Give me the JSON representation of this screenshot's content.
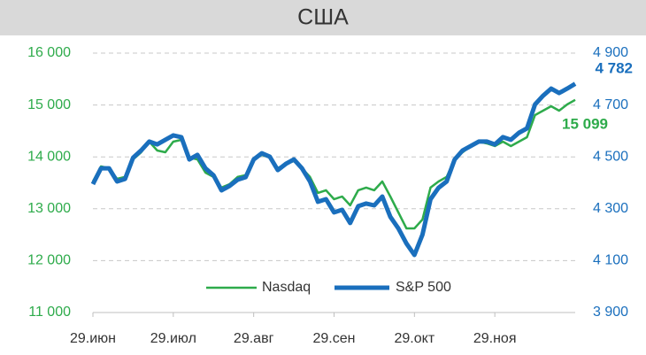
{
  "chart_data": {
    "type": "line",
    "title": "США",
    "categories": [
      "29.июн",
      null,
      null,
      null,
      null,
      null,
      null,
      null,
      null,
      null,
      "29.июл",
      null,
      null,
      null,
      null,
      null,
      null,
      null,
      null,
      null,
      "29.авг",
      null,
      null,
      null,
      null,
      null,
      null,
      null,
      null,
      null,
      "29.сен",
      null,
      null,
      null,
      null,
      null,
      null,
      null,
      null,
      null,
      "29.окт",
      null,
      null,
      null,
      null,
      null,
      null,
      null,
      null,
      null,
      "29.ноя",
      null,
      null,
      null,
      null,
      null,
      null,
      null,
      null,
      null,
      null
    ],
    "series": [
      {
        "name": "Nasdaq",
        "color": "#2eab4b",
        "axis": "y",
        "values": [
          13526,
          13816,
          13782,
          13577,
          13612,
          13953,
          14089,
          14294,
          14123,
          14089,
          14294,
          14328,
          13987,
          13953,
          13697,
          13612,
          13407,
          13475,
          13612,
          13646,
          13953,
          14038,
          13987,
          13782,
          13867,
          13919,
          13782,
          13612,
          13305,
          13356,
          13185,
          13236,
          13066,
          13356,
          13407,
          13356,
          13526,
          13236,
          12929,
          12622,
          12622,
          12793,
          13407,
          13526,
          13612,
          13953,
          14089,
          14209,
          14294,
          14260,
          14209,
          14294,
          14209,
          14294,
          14379,
          14806,
          14891,
          14976,
          14891,
          15011,
          15099
        ],
        "value_labels": [
          null,
          null,
          null,
          null,
          null,
          null,
          null,
          null,
          null,
          null,
          null,
          null,
          null,
          null,
          null,
          null,
          null,
          null,
          null,
          null,
          null,
          null,
          null,
          null,
          null,
          null,
          null,
          null,
          null,
          null,
          null,
          null,
          null,
          null,
          null,
          null,
          null,
          null,
          null,
          null,
          null,
          null,
          null,
          null,
          null,
          null,
          null,
          null,
          null,
          null,
          null,
          null,
          null,
          null,
          null,
          null,
          null,
          null,
          null,
          null,
          "15 099"
        ]
      },
      {
        "name": "S&P 500",
        "color": "#1a6fbd",
        "axis": "y2",
        "values": [
          4395,
          4456,
          4456,
          4405,
          4415,
          4497,
          4525,
          4559,
          4548,
          4566,
          4583,
          4576,
          4490,
          4508,
          4456,
          4429,
          4371,
          4388,
          4412,
          4422,
          4490,
          4514,
          4501,
          4449,
          4473,
          4490,
          4456,
          4405,
          4327,
          4337,
          4286,
          4296,
          4245,
          4310,
          4320,
          4313,
          4347,
          4269,
          4224,
          4166,
          4122,
          4200,
          4337,
          4381,
          4405,
          4490,
          4525,
          4542,
          4559,
          4559,
          4548,
          4576,
          4566,
          4593,
          4610,
          4702,
          4736,
          4763,
          4746,
          4763,
          4782
        ],
        "value_labels": [
          null,
          null,
          null,
          null,
          null,
          null,
          null,
          null,
          null,
          null,
          null,
          null,
          null,
          null,
          null,
          null,
          null,
          null,
          null,
          null,
          null,
          null,
          null,
          null,
          null,
          null,
          null,
          null,
          null,
          null,
          null,
          null,
          null,
          null,
          null,
          null,
          null,
          null,
          null,
          null,
          null,
          null,
          null,
          null,
          null,
          null,
          null,
          null,
          null,
          null,
          null,
          null,
          null,
          null,
          null,
          null,
          null,
          null,
          null,
          null,
          "4 782"
        ]
      }
    ],
    "ylim": [
      11000,
      16000
    ],
    "yticks": [
      {
        "value": 11000,
        "label": "11 000"
      },
      {
        "value": 12000,
        "label": "12 000"
      },
      {
        "value": 13000,
        "label": "13 000"
      },
      {
        "value": 14000,
        "label": "14 000"
      },
      {
        "value": 15000,
        "label": "15 000"
      },
      {
        "value": 16000,
        "label": "16 000"
      }
    ],
    "y2lim": [
      3900,
      4900
    ],
    "y2ticks": [
      {
        "value": 3900,
        "label": "3 900"
      },
      {
        "value": 4100,
        "label": "4 100"
      },
      {
        "value": 4300,
        "label": "4 300"
      },
      {
        "value": 4500,
        "label": "4 500"
      },
      {
        "value": 4700,
        "label": "4 700"
      },
      {
        "value": 4900,
        "label": "4 900"
      }
    ],
    "grid": true,
    "legend": "bottom"
  }
}
